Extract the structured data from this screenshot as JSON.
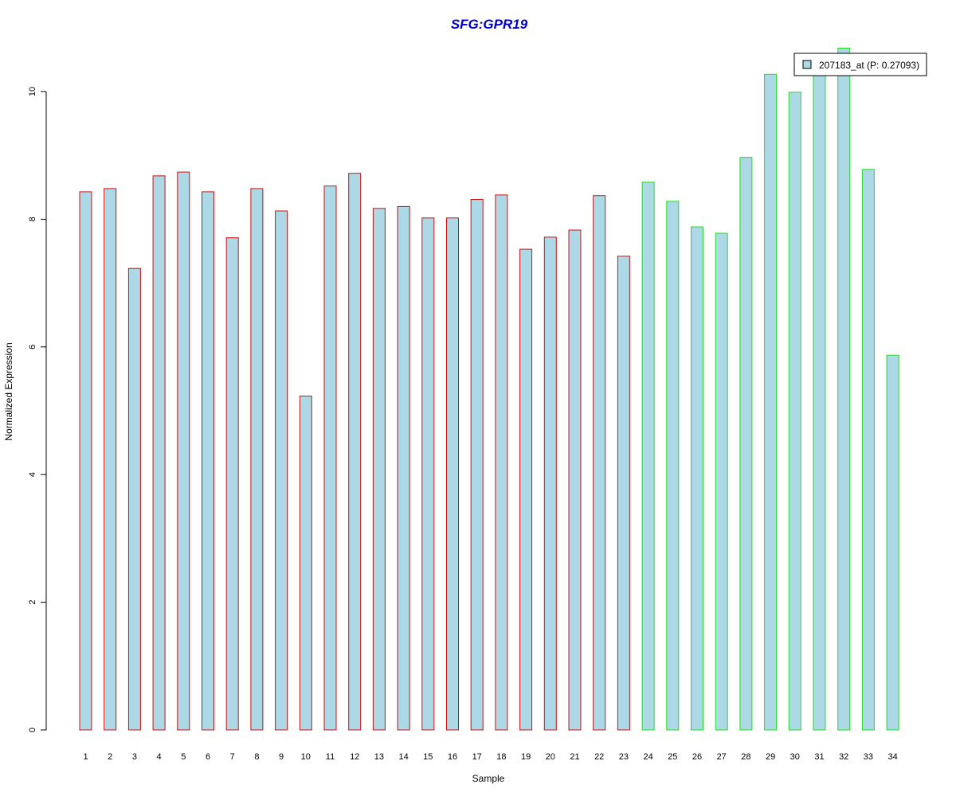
{
  "chart_data": {
    "type": "bar",
    "title": "SFG:GPR19",
    "xlabel": "Sample",
    "ylabel": "Normalized Expression",
    "ylim": [
      0,
      10.7
    ],
    "yticks": [
      0,
      2,
      4,
      6,
      8,
      10
    ],
    "grid": false,
    "legend_position": "top-right",
    "categories": [
      "1",
      "2",
      "3",
      "4",
      "5",
      "6",
      "7",
      "8",
      "9",
      "10",
      "11",
      "12",
      "13",
      "14",
      "15",
      "16",
      "17",
      "18",
      "19",
      "20",
      "21",
      "22",
      "23",
      "24",
      "25",
      "26",
      "27",
      "28",
      "29",
      "30",
      "31",
      "32",
      "33",
      "34"
    ],
    "series": [
      {
        "name": "207183_at (P: 0.27093)",
        "values": [
          8.43,
          8.48,
          7.23,
          8.68,
          8.74,
          8.43,
          7.71,
          8.48,
          8.13,
          5.23,
          8.52,
          8.72,
          8.17,
          8.2,
          8.02,
          8.02,
          8.31,
          8.38,
          7.53,
          7.72,
          7.83,
          8.37,
          7.42,
          8.58,
          8.28,
          7.88,
          7.78,
          8.97,
          10.27,
          9.99,
          10.33,
          10.68,
          8.78,
          5.87
        ]
      }
    ],
    "bar_groups": [
      1,
      1,
      1,
      1,
      1,
      1,
      1,
      1,
      1,
      1,
      1,
      1,
      1,
      1,
      1,
      1,
      1,
      1,
      1,
      1,
      1,
      1,
      1,
      2,
      2,
      2,
      2,
      2,
      2,
      2,
      2,
      2,
      2,
      2
    ],
    "colors": {
      "fill": "#add8e6",
      "group1_border": "#d01010",
      "group2_border": "#22dd22",
      "title": "#0000cc"
    }
  }
}
